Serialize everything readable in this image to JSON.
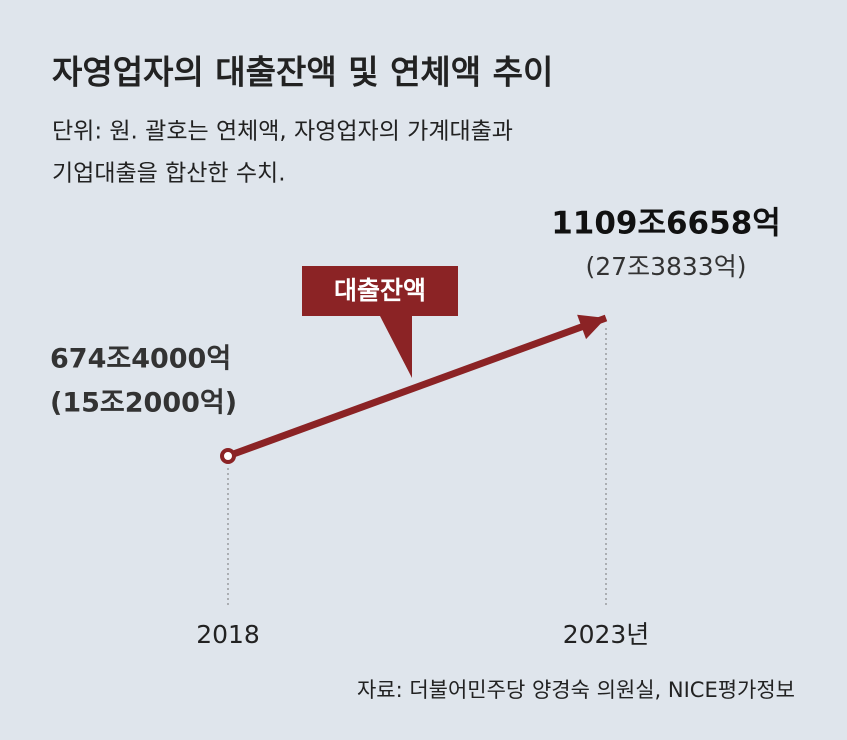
{
  "chart_data": {
    "type": "line",
    "title": "자영업자의 대출잔액 및 연체액 추이",
    "subtitle": [
      "단위: 원. 괄호는 연체액, 자영업자의 가계대출과",
      "기업대출을 합산한 수치."
    ],
    "source": "자료: 더불어민주당 양경숙 의원실, NICE평가정보",
    "categories": [
      "2018",
      "2023년"
    ],
    "series": [
      {
        "name": "대출잔액",
        "color": "#8b2325",
        "values": [
          674.4,
          1109.6658
        ],
        "value_labels": [
          "674조4000억",
          "1109조6658억"
        ]
      },
      {
        "values": [
          15.2,
          27.3833
        ],
        "value_labels": [
          "(15조2000억)",
          "(27조3833억)"
        ]
      }
    ]
  }
}
